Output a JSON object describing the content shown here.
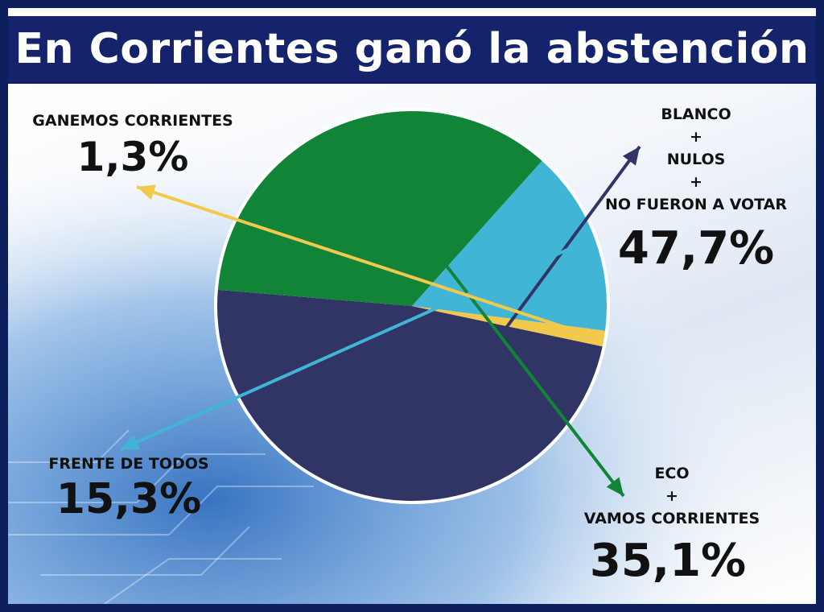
{
  "header": {
    "title": "En Corrientes ganó la abstención"
  },
  "colors": {
    "frame": "#0d1f5c",
    "header_bg": "#14236b",
    "title_text": "#ffffff"
  },
  "chart_data": {
    "type": "pie",
    "title": "En Corrientes ganó la abstención",
    "slices": [
      {
        "label_lines": [
          "BLANCO",
          "+",
          "NULOS",
          "+",
          "NO FUERON A VOTAR"
        ],
        "value": 47.7,
        "value_label": "47,7%",
        "color": "#313566"
      },
      {
        "label_lines": [
          "ECO",
          "+",
          "VAMOS CORRIENTES"
        ],
        "value": 35.1,
        "value_label": "35,1%",
        "color": "#118437"
      },
      {
        "label_lines": [
          "FRENTE DE TODOS"
        ],
        "value": 15.3,
        "value_label": "15,3%",
        "color": "#41b5d6"
      },
      {
        "label_lines": [
          "GANEMOS CORRIENTES"
        ],
        "value": 1.3,
        "value_label": "1,3%",
        "color": "#f2c94c"
      }
    ],
    "legend": "none"
  }
}
